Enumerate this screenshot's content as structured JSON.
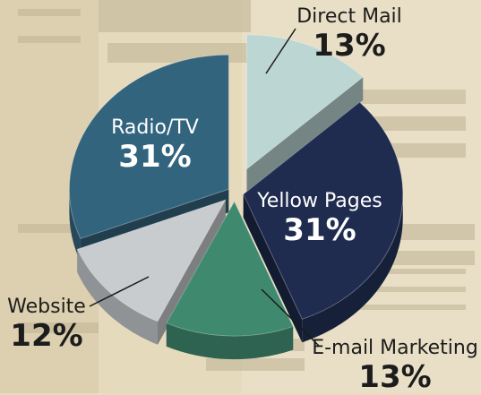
{
  "chart_data": {
    "type": "pie",
    "title": "",
    "style": "3d-exploded",
    "slices": [
      {
        "label": "Direct Mail",
        "value": 13,
        "value_label": "13%",
        "color": "#bcd6d3"
      },
      {
        "label": "Yellow Pages",
        "value": 31,
        "value_label": "31%",
        "color": "#1f2c4f"
      },
      {
        "label": "E-mail Marketing",
        "value": 13,
        "value_label": "13%",
        "color": "#3f8a6f"
      },
      {
        "label": "Website",
        "value": 12,
        "value_label": "12%",
        "color": "#c8cccf"
      },
      {
        "label": "Radio/TV",
        "value": 31,
        "value_label": "31%",
        "color": "#33647e"
      }
    ]
  }
}
